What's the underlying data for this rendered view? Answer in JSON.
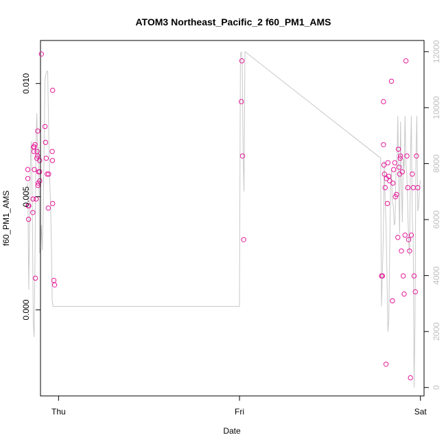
{
  "chart_data": {
    "type": "scatter",
    "title": "ATOM3 Northeast_Pacific_2 f60_PM1_AMS",
    "xlabel": "Date",
    "ylabel": "f60_PM1_AMS",
    "x_ticks": [
      "Thu",
      "Fri",
      "Sat"
    ],
    "x_range": [
      -0.1,
      2.02
    ],
    "ylim": [
      -0.0038,
      0.0119
    ],
    "y_ticks": [
      0.0,
      0.005,
      0.01
    ],
    "y_tick_labels": [
      "0.000",
      "0.005",
      "0.010"
    ],
    "y2lim": [
      -300,
      12400
    ],
    "y2_ticks": [
      0,
      2000,
      4000,
      6000,
      8000,
      10000,
      12000
    ],
    "y2_tick_labels": [
      "0",
      "2000",
      "4000",
      "6000",
      "8000",
      "10000",
      "12000"
    ],
    "grid": false,
    "points_color": "#e6199a",
    "line_color": "#c8c8c8",
    "series": [
      {
        "kind": "points",
        "axis": "left",
        "x": [
          -0.17,
          -0.17,
          -0.168,
          -0.166,
          -0.165,
          -0.142,
          -0.141,
          -0.138,
          -0.136,
          -0.135,
          -0.134,
          -0.13,
          -0.128,
          -0.124,
          -0.12,
          -0.119,
          -0.116,
          -0.115,
          -0.114,
          -0.112,
          -0.11,
          -0.105,
          -0.105,
          -0.104,
          -0.095,
          -0.075,
          -0.072,
          -0.068,
          -0.063,
          -0.057,
          -0.055,
          -0.035,
          -0.034,
          -0.033,
          -0.033,
          -0.026,
          -0.022,
          1.01,
          1.013,
          1.017,
          1.023,
          1.785,
          1.79,
          1.796,
          1.796,
          1.798,
          1.801,
          1.805,
          1.81,
          1.812,
          1.817,
          1.82,
          1.825,
          1.83,
          1.84,
          1.845,
          1.848,
          1.852,
          1.858,
          1.862,
          1.868,
          1.875,
          1.878,
          1.882,
          1.885,
          1.888,
          1.89,
          1.895,
          1.9,
          1.905,
          1.91,
          1.915,
          1.92,
          1.925,
          1.93,
          1.935,
          1.94,
          1.945,
          1.95,
          1.955,
          1.96,
          1.965,
          1.972,
          1.978,
          1.985
        ],
        "y": [
          0.0062,
          0.0058,
          0.0046,
          0.004,
          0.0046,
          0.0043,
          0.0049,
          0.0072,
          0.007,
          0.0072,
          0.0062,
          0.0073,
          0.0014,
          0.0049,
          0.0067,
          0.007,
          0.0068,
          0.0079,
          0.0055,
          0.0056,
          0.0061,
          0.0066,
          0.0061,
          0.0057,
          0.0113,
          0.0081,
          0.0074,
          0.0067,
          0.006,
          0.0045,
          0.006,
          0.007,
          0.0066,
          0.0047,
          0.0097,
          0.0013,
          0.0011,
          0.0092,
          0.011,
          0.0068,
          0.0031,
          0.0015,
          0.0015,
          0.0073,
          0.0092,
          0.0064,
          0.006,
          0.0054,
          -0.0024,
          0.0058,
          0.0047,
          0.0065,
          0.0059,
          0.0057,
          0.0101,
          0.0004,
          0.0056,
          0.0062,
          0.0065,
          0.005,
          0.0051,
          0.0032,
          0.0071,
          0.0063,
          0.006,
          0.0067,
          0.0068,
          0.0026,
          0.0061,
          0.0015,
          0.0007,
          0.0033,
          0.011,
          0.0068,
          0.0054,
          0.0031,
          0.0026,
          -0.003,
          0.0033,
          0.006,
          0.0054,
          0.0015,
          0.0008,
          0.0068,
          0.0054
        ]
      },
      {
        "kind": "line",
        "axis": "right",
        "x": [
          -0.17,
          -0.165,
          -0.16,
          -0.155,
          -0.15,
          -0.145,
          -0.14,
          -0.135,
          -0.13,
          -0.125,
          -0.12,
          -0.115,
          -0.11,
          -0.105,
          -0.1,
          -0.095,
          -0.09,
          -0.085,
          -0.08,
          -0.075,
          -0.07,
          -0.065,
          -0.06,
          -0.055,
          -0.05,
          -0.045,
          -0.04,
          -0.035,
          -0.03,
          -0.025,
          -0.02,
          1.0,
          1.005,
          1.01,
          1.015,
          1.02,
          1.025,
          1.03,
          1.78,
          1.785,
          1.79,
          1.795,
          1.8,
          1.805,
          1.81,
          1.815,
          1.82,
          1.825,
          1.83,
          1.835,
          1.84,
          1.845,
          1.85,
          1.855,
          1.86,
          1.865,
          1.87,
          1.875,
          1.88,
          1.885,
          1.89,
          1.895,
          1.9,
          1.905,
          1.91,
          1.915,
          1.92,
          1.925,
          1.93,
          1.935,
          1.94,
          1.945,
          1.95,
          1.955,
          1.96,
          1.965,
          1.97,
          1.975,
          1.98,
          1.985,
          1.99,
          1.995,
          2.0
        ],
        "y": [
          7300,
          3500,
          6000,
          8300,
          8800,
          6400,
          2300,
          1800,
          4900,
          8700,
          9800,
          8100,
          8600,
          4800,
          5000,
          5800,
          4900,
          6200,
          8800,
          11000,
          11200,
          11300,
          11300,
          9300,
          7600,
          6700,
          5300,
          3100,
          2900,
          2900,
          2900,
          2900,
          11900,
          12000,
          11600,
          8400,
          7000,
          12000,
          8200,
          2900,
          4200,
          5500,
          8100,
          6700,
          5800,
          4100,
          2000,
          2400,
          4800,
          7100,
          7800,
          6600,
          6500,
          5800,
          5900,
          7800,
          7900,
          9700,
          7200,
          5500,
          9500,
          7400,
          5900,
          8200,
          7800,
          9700,
          8000,
          7600,
          6400,
          5200,
          4700,
          8300,
          9700,
          6000,
          5300,
          0,
          2300,
          8000,
          9700,
          6300,
          6500,
          7100,
          7400
        ]
      }
    ]
  }
}
